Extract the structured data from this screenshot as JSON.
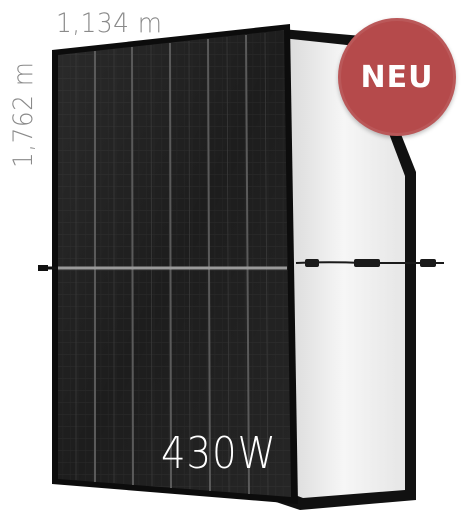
{
  "product": {
    "width_label": "1,134 m",
    "height_label": "1,762 m",
    "power_label": "430W",
    "badge_label": "NEU"
  },
  "colors": {
    "badge": "#b54a4b",
    "panel_front": "#1e1e1e",
    "panel_frame": "#0c0c0c",
    "backsheet": "#f4f4f4",
    "dimension_text": "#8a8a8a"
  },
  "icons": [
    "solar-panel-front-icon",
    "solar-panel-back-icon"
  ]
}
